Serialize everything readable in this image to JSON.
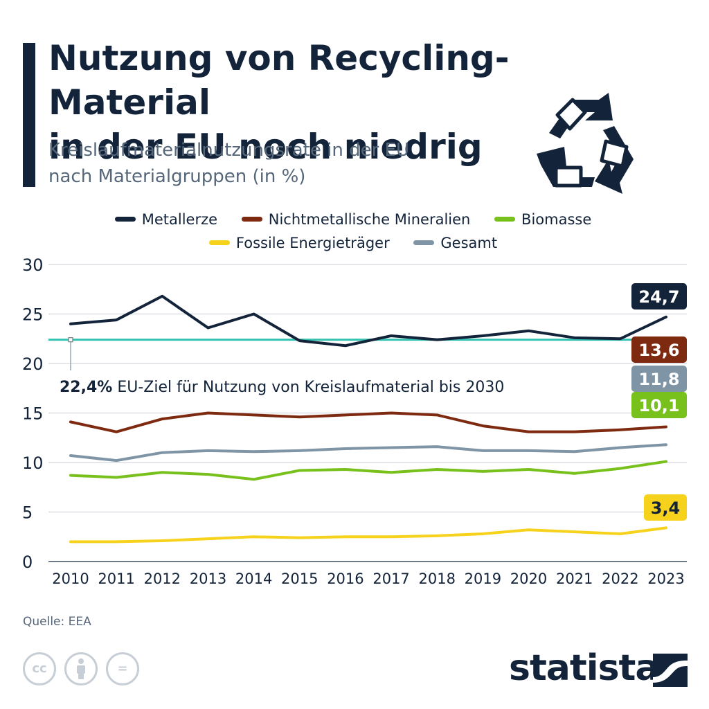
{
  "header": {
    "title_line1": "Nutzung von Recycling-Material",
    "title_line2": "in der EU noch niedrig",
    "subtitle_line1": "Kreislaufmaterialnutzungsrate in der EU",
    "subtitle_line2": "nach Materialgruppen (in %)",
    "icon": "recycle-icon"
  },
  "legend": [
    {
      "name": "Metallerze",
      "color": "#13233a"
    },
    {
      "name": "Nichtmetallische Mineralien",
      "color": "#7e2a10"
    },
    {
      "name": "Biomasse",
      "color": "#78c01c"
    },
    {
      "name": "Fossile Energieträger",
      "color": "#f7d21d"
    },
    {
      "name": "Gesamt",
      "color": "#7f95a6"
    }
  ],
  "chart_data": {
    "type": "line",
    "x": [
      2010,
      2011,
      2012,
      2013,
      2014,
      2015,
      2016,
      2017,
      2018,
      2019,
      2020,
      2021,
      2022,
      2023
    ],
    "ylim": [
      0,
      30
    ],
    "yticks": [
      0,
      5,
      10,
      15,
      20,
      25,
      30
    ],
    "grid": true,
    "legend_position": "top",
    "series": [
      {
        "name": "Metallerze",
        "color": "#13233a",
        "end_label": "24,7",
        "values": [
          24.0,
          24.4,
          26.8,
          23.6,
          25.0,
          22.3,
          21.8,
          22.8,
          22.4,
          22.8,
          23.3,
          22.6,
          22.5,
          24.7
        ]
      },
      {
        "name": "Nichtmetallische Mineralien",
        "color": "#7e2a10",
        "end_label": "13,6",
        "values": [
          14.1,
          13.1,
          14.4,
          15.0,
          14.8,
          14.6,
          14.8,
          15.0,
          14.8,
          13.7,
          13.1,
          13.1,
          13.3,
          13.6
        ]
      },
      {
        "name": "Gesamt",
        "color": "#7f95a6",
        "end_label": "11,8",
        "values": [
          10.7,
          10.2,
          11.0,
          11.2,
          11.1,
          11.2,
          11.4,
          11.5,
          11.6,
          11.2,
          11.2,
          11.1,
          11.5,
          11.8
        ]
      },
      {
        "name": "Biomasse",
        "color": "#78c01c",
        "end_label": "10,1",
        "values": [
          8.7,
          8.5,
          9.0,
          8.8,
          8.3,
          9.2,
          9.3,
          9.0,
          9.3,
          9.1,
          9.3,
          8.9,
          9.4,
          10.1
        ]
      },
      {
        "name": "Fossile Energieträger",
        "color": "#f7d21d",
        "end_label": "3,4",
        "values": [
          2.0,
          2.0,
          2.1,
          2.3,
          2.5,
          2.4,
          2.5,
          2.5,
          2.6,
          2.8,
          3.2,
          3.0,
          2.8,
          3.4
        ]
      }
    ],
    "reference_line": {
      "value": 22.4,
      "color": "#33c2b1",
      "label_value": "22,4%",
      "label_text": "EU-Ziel für Nutzung von Kreislaufmaterial bis 2030"
    }
  },
  "footer": {
    "source": "Quelle: EEA",
    "brand": "statista",
    "license_icons": [
      "cc-icon",
      "attribution-icon",
      "no-derivatives-icon"
    ]
  }
}
